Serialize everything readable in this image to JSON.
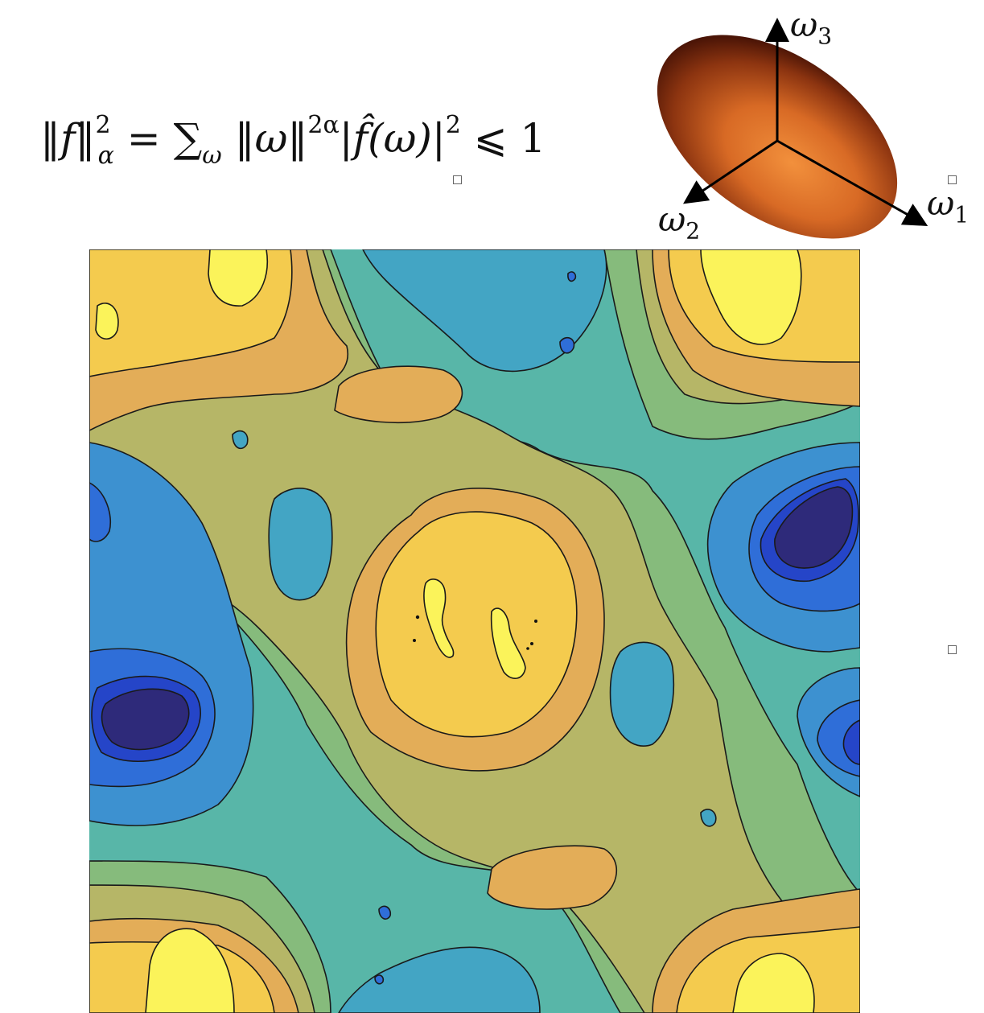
{
  "formula": {
    "norm_open": "‖f‖",
    "norm_sup": "2",
    "norm_sub": "α",
    "eq": " = ",
    "sum": "∑",
    "sum_sub": "ω",
    "term1": " ‖ω‖",
    "term1_sup": "2α",
    "term2": "|f̂(ω)|",
    "term2_sup": "2",
    "rel": " ⩽ 1"
  },
  "axes": {
    "w1": {
      "sym": "ω",
      "idx": "1"
    },
    "w2": {
      "sym": "ω",
      "idx": "2"
    },
    "w3": {
      "sym": "ω",
      "idx": "3"
    }
  },
  "colors": {
    "ellipsoid_light": "#f2903c",
    "ellipsoid_dark": "#4a1406",
    "contour_levels": [
      "#2e2a7a",
      "#2545c8",
      "#2f6ed8",
      "#3d91d0",
      "#43a5c4",
      "#58b6a8",
      "#86bb7c",
      "#b6b667",
      "#e3ad58",
      "#f4cb4e",
      "#fbf35a"
    ]
  }
}
